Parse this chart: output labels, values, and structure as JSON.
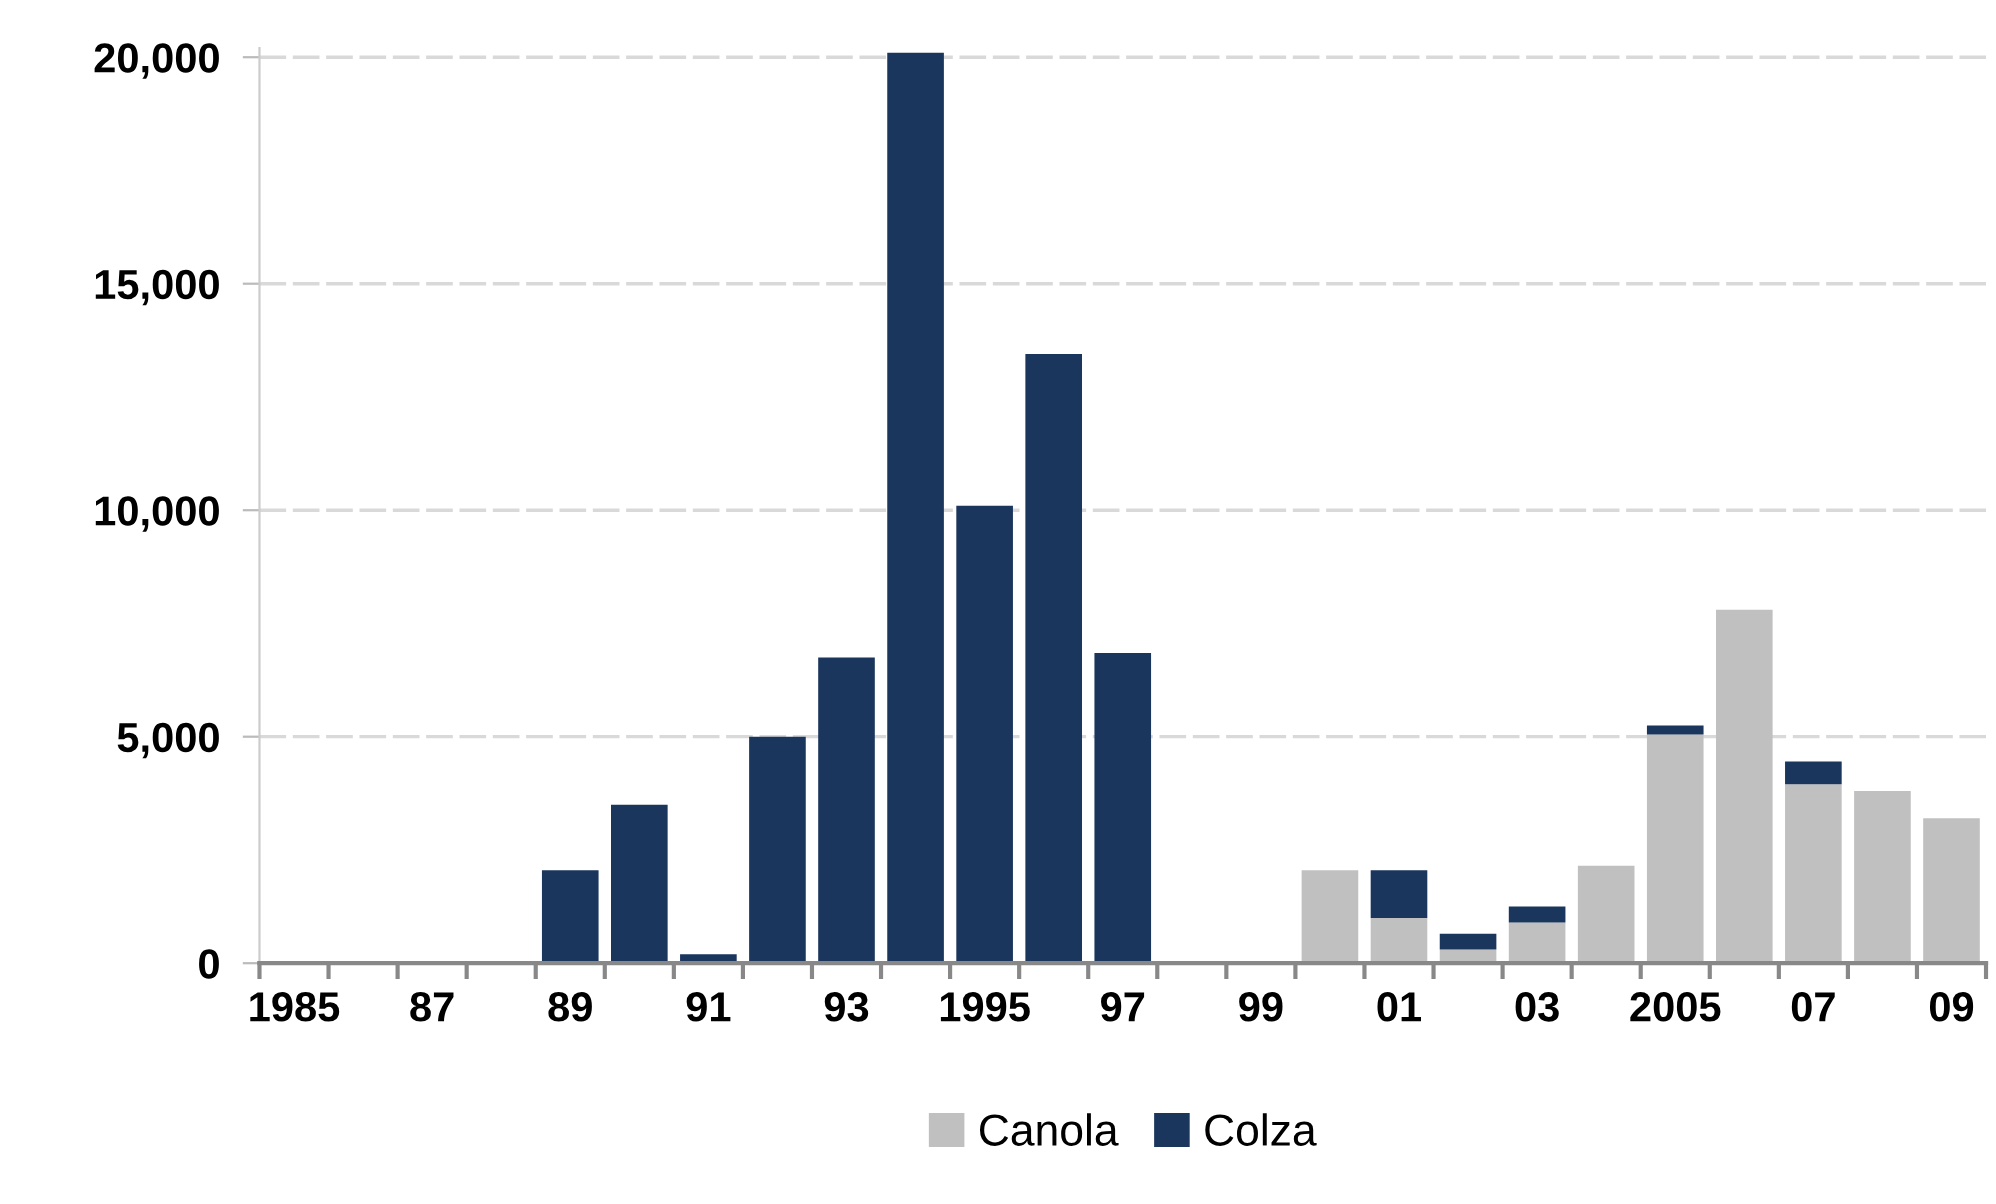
{
  "chart_data": {
    "type": "bar",
    "stacked": true,
    "categories": [
      "1985",
      null,
      "87",
      null,
      "89",
      null,
      "91",
      null,
      "93",
      null,
      "1995",
      null,
      "97",
      null,
      "99",
      null,
      "01",
      null,
      "03",
      null,
      "2005",
      null,
      "07",
      null,
      "09"
    ],
    "series": [
      {
        "name": "Canola",
        "color": "#c0c0c0",
        "values": [
          0,
          0,
          0,
          0,
          0,
          0,
          0,
          0,
          0,
          0,
          0,
          0,
          0,
          0,
          0,
          2050,
          1000,
          300,
          900,
          2150,
          5050,
          7800,
          3950,
          3800,
          3200
        ]
      },
      {
        "name": "Colza",
        "color": "#1a365d",
        "values": [
          50,
          50,
          50,
          0,
          2050,
          3500,
          200,
          5000,
          6750,
          20100,
          10100,
          13450,
          6850,
          0,
          0,
          0,
          1050,
          350,
          350,
          0,
          200,
          0,
          500,
          0,
          0
        ]
      }
    ],
    "ylim": [
      0,
      20200
    ],
    "yticks": [
      {
        "value": 0,
        "label": "0"
      },
      {
        "value": 5000,
        "label": "5,000"
      },
      {
        "value": 10000,
        "label": "10,000"
      },
      {
        "value": 15000,
        "label": "15,000"
      },
      {
        "value": 20000,
        "label": "20,000"
      }
    ],
    "grid": "y",
    "legend": "bottom"
  }
}
